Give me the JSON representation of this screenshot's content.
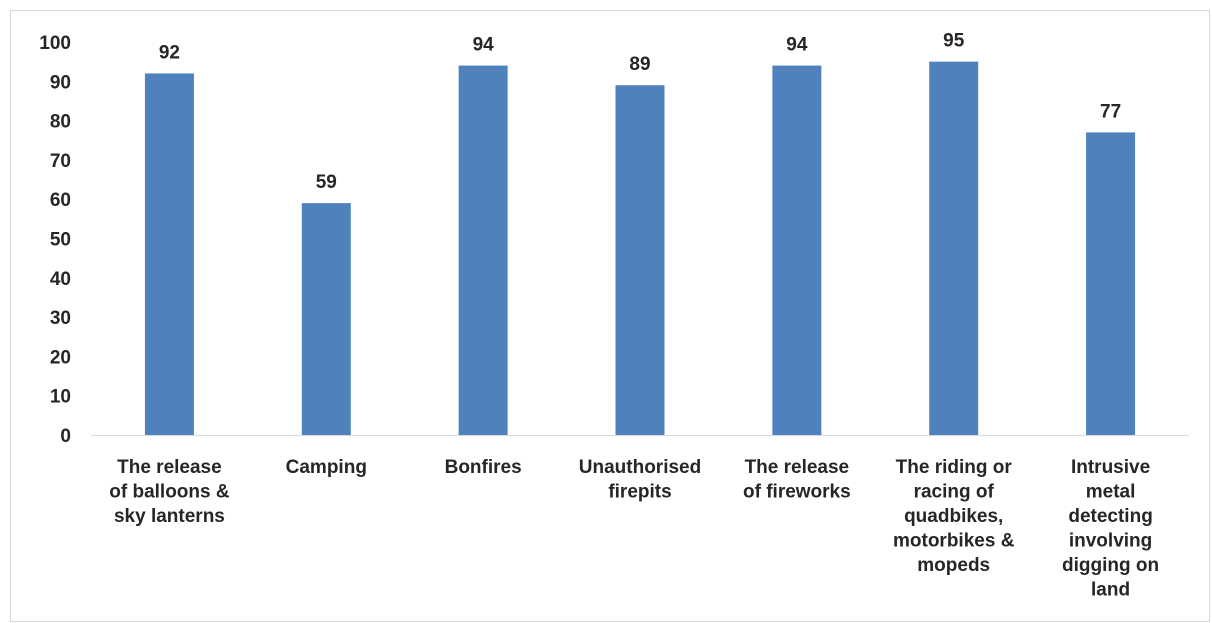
{
  "chart_data": {
    "type": "bar",
    "categories": [
      "The release of balloons & sky lanterns",
      "Camping",
      "Bonfires",
      "Unauthorised firepits",
      "The release of fireworks",
      "The riding or racing of quadbikes, motorbikes & mopeds",
      "Intrusive metal detecting involving digging on land"
    ],
    "category_lines": [
      [
        "The release",
        "of balloons &",
        "sky lanterns"
      ],
      [
        "Camping"
      ],
      [
        "Bonfires"
      ],
      [
        "Unauthorised",
        "firepits"
      ],
      [
        "The release",
        "of fireworks"
      ],
      [
        "The riding or",
        "racing of",
        "quadbikes,",
        "motorbikes &",
        "mopeds"
      ],
      [
        "Intrusive",
        "metal",
        "detecting",
        "involving",
        "digging on",
        "land"
      ]
    ],
    "values": [
      92,
      59,
      94,
      89,
      94,
      95,
      77
    ],
    "ylim": [
      0,
      100
    ],
    "yticks": [
      0,
      10,
      20,
      30,
      40,
      50,
      60,
      70,
      80,
      90,
      100
    ],
    "title": "",
    "xlabel": "",
    "ylabel": "",
    "data_labels": true,
    "grid": false,
    "legend": "none",
    "bar_color": "#4f81bd"
  }
}
